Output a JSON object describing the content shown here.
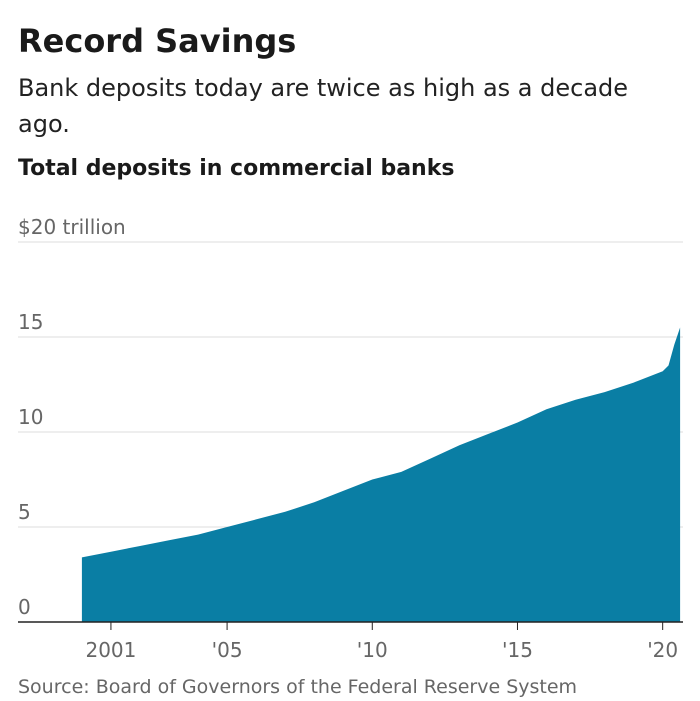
{
  "chart_data": {
    "type": "area",
    "title": "Record Savings",
    "subtitle": "Bank deposits today are twice as high as a decade ago.",
    "chart_title": "Total deposits in commercial banks",
    "source": "Source: Board of Governors of the Federal Reserve System",
    "x": [
      2000,
      2001,
      2002,
      2003,
      2004,
      2005,
      2006,
      2007,
      2008,
      2009,
      2010,
      2011,
      2012,
      2013,
      2014,
      2015,
      2016,
      2017,
      2018,
      2019,
      2020,
      2020.2,
      2020.4,
      2020.6
    ],
    "values": [
      3.4,
      3.7,
      4.0,
      4.3,
      4.6,
      5.0,
      5.4,
      5.8,
      6.3,
      6.9,
      7.5,
      7.9,
      8.6,
      9.3,
      9.9,
      10.5,
      11.2,
      11.7,
      12.1,
      12.6,
      13.2,
      13.5,
      14.6,
      15.5
    ],
    "color": "#0a7ea4",
    "xlim": [
      1997.8,
      2020.7
    ],
    "xticks": [
      2001,
      {
        "value": 2005,
        "label": "'05"
      },
      {
        "value": 2010,
        "label": "'10"
      },
      {
        "value": 2015,
        "label": "'15"
      },
      {
        "value": 2020,
        "label": "'20"
      }
    ],
    "ylim": [
      0,
      20
    ],
    "yticks": [
      0,
      5,
      10,
      15,
      {
        "value": 20,
        "label": "$20 trillion"
      }
    ],
    "grid": true
  }
}
